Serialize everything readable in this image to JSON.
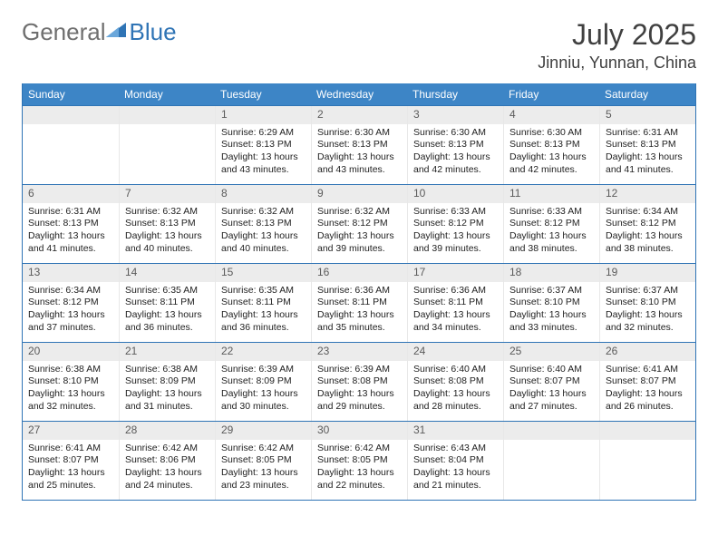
{
  "branding": {
    "word1": "General",
    "word2": "Blue",
    "text_color_1": "#6f6f6f",
    "text_color_2": "#2f74b5",
    "triangle_color": "#2f74b5"
  },
  "title": {
    "month": "July 2025",
    "location": "Jinniu, Yunnan, China",
    "title_fontsize": 32,
    "location_fontsize": 18,
    "title_color": "#404040"
  },
  "calendar": {
    "header_bg": "#3d85c6",
    "header_text_color": "#ffffff",
    "border_color": "#2f74b5",
    "daynum_bg": "#ececec",
    "daynum_color": "#5b5b5b",
    "cell_fontsize": 10.5,
    "day_names": [
      "Sunday",
      "Monday",
      "Tuesday",
      "Wednesday",
      "Thursday",
      "Friday",
      "Saturday"
    ],
    "weeks": [
      [
        null,
        null,
        {
          "num": "1",
          "sunrise": "6:29 AM",
          "sunset": "8:13 PM",
          "daylight": "13 hours and 43 minutes."
        },
        {
          "num": "2",
          "sunrise": "6:30 AM",
          "sunset": "8:13 PM",
          "daylight": "13 hours and 43 minutes."
        },
        {
          "num": "3",
          "sunrise": "6:30 AM",
          "sunset": "8:13 PM",
          "daylight": "13 hours and 42 minutes."
        },
        {
          "num": "4",
          "sunrise": "6:30 AM",
          "sunset": "8:13 PM",
          "daylight": "13 hours and 42 minutes."
        },
        {
          "num": "5",
          "sunrise": "6:31 AM",
          "sunset": "8:13 PM",
          "daylight": "13 hours and 41 minutes."
        }
      ],
      [
        {
          "num": "6",
          "sunrise": "6:31 AM",
          "sunset": "8:13 PM",
          "daylight": "13 hours and 41 minutes."
        },
        {
          "num": "7",
          "sunrise": "6:32 AM",
          "sunset": "8:13 PM",
          "daylight": "13 hours and 40 minutes."
        },
        {
          "num": "8",
          "sunrise": "6:32 AM",
          "sunset": "8:13 PM",
          "daylight": "13 hours and 40 minutes."
        },
        {
          "num": "9",
          "sunrise": "6:32 AM",
          "sunset": "8:12 PM",
          "daylight": "13 hours and 39 minutes."
        },
        {
          "num": "10",
          "sunrise": "6:33 AM",
          "sunset": "8:12 PM",
          "daylight": "13 hours and 39 minutes."
        },
        {
          "num": "11",
          "sunrise": "6:33 AM",
          "sunset": "8:12 PM",
          "daylight": "13 hours and 38 minutes."
        },
        {
          "num": "12",
          "sunrise": "6:34 AM",
          "sunset": "8:12 PM",
          "daylight": "13 hours and 38 minutes."
        }
      ],
      [
        {
          "num": "13",
          "sunrise": "6:34 AM",
          "sunset": "8:12 PM",
          "daylight": "13 hours and 37 minutes."
        },
        {
          "num": "14",
          "sunrise": "6:35 AM",
          "sunset": "8:11 PM",
          "daylight": "13 hours and 36 minutes."
        },
        {
          "num": "15",
          "sunrise": "6:35 AM",
          "sunset": "8:11 PM",
          "daylight": "13 hours and 36 minutes."
        },
        {
          "num": "16",
          "sunrise": "6:36 AM",
          "sunset": "8:11 PM",
          "daylight": "13 hours and 35 minutes."
        },
        {
          "num": "17",
          "sunrise": "6:36 AM",
          "sunset": "8:11 PM",
          "daylight": "13 hours and 34 minutes."
        },
        {
          "num": "18",
          "sunrise": "6:37 AM",
          "sunset": "8:10 PM",
          "daylight": "13 hours and 33 minutes."
        },
        {
          "num": "19",
          "sunrise": "6:37 AM",
          "sunset": "8:10 PM",
          "daylight": "13 hours and 32 minutes."
        }
      ],
      [
        {
          "num": "20",
          "sunrise": "6:38 AM",
          "sunset": "8:10 PM",
          "daylight": "13 hours and 32 minutes."
        },
        {
          "num": "21",
          "sunrise": "6:38 AM",
          "sunset": "8:09 PM",
          "daylight": "13 hours and 31 minutes."
        },
        {
          "num": "22",
          "sunrise": "6:39 AM",
          "sunset": "8:09 PM",
          "daylight": "13 hours and 30 minutes."
        },
        {
          "num": "23",
          "sunrise": "6:39 AM",
          "sunset": "8:08 PM",
          "daylight": "13 hours and 29 minutes."
        },
        {
          "num": "24",
          "sunrise": "6:40 AM",
          "sunset": "8:08 PM",
          "daylight": "13 hours and 28 minutes."
        },
        {
          "num": "25",
          "sunrise": "6:40 AM",
          "sunset": "8:07 PM",
          "daylight": "13 hours and 27 minutes."
        },
        {
          "num": "26",
          "sunrise": "6:41 AM",
          "sunset": "8:07 PM",
          "daylight": "13 hours and 26 minutes."
        }
      ],
      [
        {
          "num": "27",
          "sunrise": "6:41 AM",
          "sunset": "8:07 PM",
          "daylight": "13 hours and 25 minutes."
        },
        {
          "num": "28",
          "sunrise": "6:42 AM",
          "sunset": "8:06 PM",
          "daylight": "13 hours and 24 minutes."
        },
        {
          "num": "29",
          "sunrise": "6:42 AM",
          "sunset": "8:05 PM",
          "daylight": "13 hours and 23 minutes."
        },
        {
          "num": "30",
          "sunrise": "6:42 AM",
          "sunset": "8:05 PM",
          "daylight": "13 hours and 22 minutes."
        },
        {
          "num": "31",
          "sunrise": "6:43 AM",
          "sunset": "8:04 PM",
          "daylight": "13 hours and 21 minutes."
        },
        null,
        null
      ]
    ],
    "labels": {
      "sunrise": "Sunrise:",
      "sunset": "Sunset:",
      "daylight": "Daylight:"
    }
  }
}
